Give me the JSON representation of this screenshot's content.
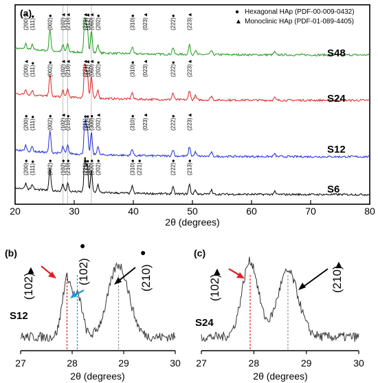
{
  "figure": {
    "panel_a": "(a)",
    "panel_b": "(b)",
    "panel_c": "(c)"
  },
  "chart_data": [
    {
      "type": "line",
      "panel": "(a)",
      "xlabel": "2θ (degrees)",
      "ylabel": "",
      "xlim": [
        20,
        80
      ],
      "xticks": [
        20,
        30,
        40,
        50,
        60,
        70,
        80
      ],
      "legend": {
        "placement": "top-right",
        "entries": [
          {
            "marker": "●",
            "label": "Hexagonal HAp (PDF-00-009-0432)"
          },
          {
            "marker": "▲",
            "label": "Monoclinic HAp (PDF-01-089-4405)"
          }
        ]
      },
      "reference_lines_x": [
        28.1,
        28.9,
        32.9
      ],
      "peaks_x": [
        21.8,
        22.9,
        25.9,
        28.1,
        28.9,
        31.8,
        32.2,
        32.9,
        34.0,
        39.8,
        46.7,
        49.5,
        50.5,
        53.2,
        63.9
      ],
      "series": [
        {
          "name": "S48",
          "color": "#1a9a1a",
          "offset": 3,
          "peak_labels": [
            {
              "x": 21.8,
              "label": "(200)▲"
            },
            {
              "x": 22.9,
              "label": "(111)●"
            },
            {
              "x": 25.9,
              "label": "(002)●"
            },
            {
              "x": 28.1,
              "label": "(102)▲"
            },
            {
              "x": 28.9,
              "label": "(210)▲"
            },
            {
              "x": 31.8,
              "label": "(221)▲"
            },
            {
              "x": 32.2,
              "label": "(112)▲"
            },
            {
              "x": 32.9,
              "label": "(060)▲"
            },
            {
              "x": 34.0,
              "label": "(202)●"
            },
            {
              "x": 39.8,
              "label": "(310)●"
            },
            {
              "x": 42.0,
              "label": "(023)▲"
            },
            {
              "x": 46.7,
              "label": "(222)●"
            },
            {
              "x": 49.5,
              "label": "(223)▲"
            }
          ]
        },
        {
          "name": "S24",
          "color": "#e02020",
          "offset": 2,
          "peak_labels": [
            {
              "x": 21.8,
              "label": "(200)▲"
            },
            {
              "x": 22.9,
              "label": "(111)●"
            },
            {
              "x": 25.9,
              "label": "(002)●"
            },
            {
              "x": 28.1,
              "label": "(102)▲"
            },
            {
              "x": 28.9,
              "label": "(210)▲"
            },
            {
              "x": 31.8,
              "label": "(221)▲"
            },
            {
              "x": 32.2,
              "label": "(112)▲"
            },
            {
              "x": 32.9,
              "label": "(060)▲"
            },
            {
              "x": 34.0,
              "label": "(202)●"
            },
            {
              "x": 39.8,
              "label": "(310)●"
            },
            {
              "x": 42.0,
              "label": "(023)▲"
            },
            {
              "x": 46.7,
              "label": "(222)●"
            },
            {
              "x": 49.5,
              "label": "(223)▲"
            }
          ]
        },
        {
          "name": "S12",
          "color": "#1c28d8",
          "offset": 1,
          "peak_labels": [
            {
              "x": 21.8,
              "label": "(200)●"
            },
            {
              "x": 22.9,
              "label": "(111)●"
            },
            {
              "x": 25.9,
              "label": "(002)●"
            },
            {
              "x": 28.1,
              "label": "(102)▲"
            },
            {
              "x": 28.9,
              "label": "(210)●"
            },
            {
              "x": 31.8,
              "label": "(211)●"
            },
            {
              "x": 32.2,
              "label": "(112)●"
            },
            {
              "x": 32.9,
              "label": "(300)●"
            },
            {
              "x": 34.0,
              "label": "(202)▲"
            },
            {
              "x": 39.8,
              "label": "(310)●"
            },
            {
              "x": 42.0,
              "label": "(023)▲"
            },
            {
              "x": 46.7,
              "label": "(222)●"
            },
            {
              "x": 49.5,
              "label": "(223)▲"
            }
          ]
        },
        {
          "name": "S6",
          "color": "#000000",
          "offset": 0,
          "peak_labels": [
            {
              "x": 21.8,
              "label": "(200)●"
            },
            {
              "x": 22.9,
              "label": "(111)●"
            },
            {
              "x": 25.9,
              "label": "(002)●"
            },
            {
              "x": 28.1,
              "label": "(102)●"
            },
            {
              "x": 28.9,
              "label": "(210)●"
            },
            {
              "x": 31.8,
              "label": "(211)●"
            },
            {
              "x": 32.2,
              "label": "(112)●"
            },
            {
              "x": 32.9,
              "label": "(300)●"
            },
            {
              "x": 34.0,
              "label": "(202)●"
            },
            {
              "x": 39.8,
              "label": "(310)●"
            },
            {
              "x": 41.0,
              "label": "(221)●"
            },
            {
              "x": 46.7,
              "label": "(222)●"
            },
            {
              "x": 49.5,
              "label": "(213)●"
            }
          ]
        }
      ]
    },
    {
      "type": "line",
      "panel": "(b)",
      "xlabel": "2θ (degrees)",
      "xlim": [
        27,
        30
      ],
      "xticks": [
        27,
        28,
        29,
        30
      ],
      "sample": "S12",
      "peak_labels": [
        {
          "x": 27.9,
          "label": "(102)",
          "marker": "▲"
        },
        {
          "x": 28.1,
          "label": "(102)",
          "marker": "●"
        },
        {
          "x": 28.9,
          "label": "(210)",
          "marker": "●"
        }
      ],
      "dashed_lines_x": [
        {
          "x": 27.9,
          "color": "#e02020"
        },
        {
          "x": 28.1,
          "color": "#1a9ad8"
        },
        {
          "x": 28.9,
          "color": "#999999"
        }
      ]
    },
    {
      "type": "line",
      "panel": "(c)",
      "xlabel": "2θ (degrees)",
      "xlim": [
        27,
        30
      ],
      "xticks": [
        27,
        28,
        29,
        30
      ],
      "sample": "S24",
      "peak_labels": [
        {
          "x": 27.93,
          "label": "(102)",
          "marker": "▲"
        },
        {
          "x": 28.65,
          "label": "(210)",
          "marker": "▲"
        }
      ],
      "dashed_lines_x": [
        {
          "x": 27.93,
          "color": "#e02020"
        },
        {
          "x": 28.65,
          "color": "#999999"
        }
      ]
    }
  ]
}
